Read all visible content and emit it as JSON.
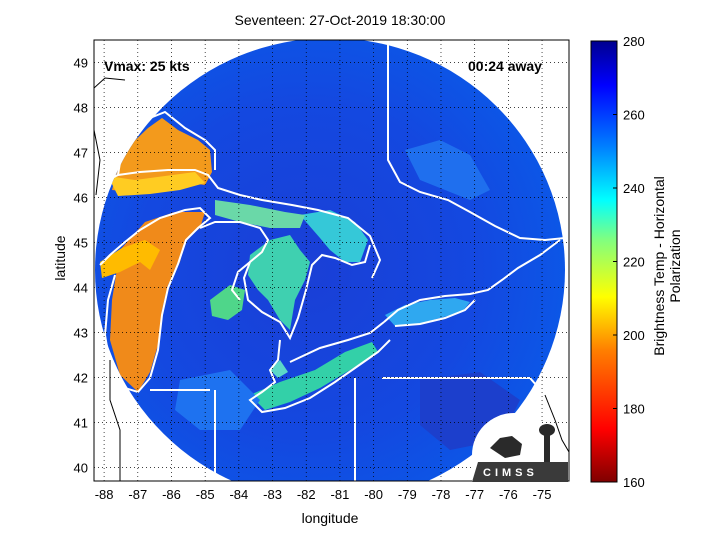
{
  "chart_data": {
    "type": "heatmap",
    "title": "Seventeen: 27-Oct-2019 18:30:00",
    "xlabel": "longitude",
    "ylabel": "latitude",
    "xlim": [
      -88.3,
      -74.2
    ],
    "ylim": [
      39.7,
      49.5
    ],
    "xticks": [
      -88,
      -87,
      -86,
      -85,
      -84,
      -83,
      -82,
      -81,
      -80,
      -79,
      -78,
      -77,
      -76,
      -75
    ],
    "yticks": [
      40,
      41,
      42,
      43,
      44,
      45,
      46,
      47,
      48,
      49
    ],
    "grid": true,
    "annotations": {
      "vmax": "Vmax: 25 kts",
      "time_away": "00:24 away"
    },
    "colorbar": {
      "label": "Brightness Temp - Horizontal Polarization",
      "min": 160,
      "max": 280,
      "ticks": [
        160,
        180,
        200,
        220,
        240,
        260,
        280
      ],
      "colormap": [
        "#7f0000",
        "#ff0000",
        "#ff8000",
        "#ffff00",
        "#80ff80",
        "#00ffff",
        "#0080ff",
        "#0000ff",
        "#00008f"
      ]
    },
    "swath": {
      "center_lon": -81.15,
      "center_lat": 44.2,
      "radius_deg_lon": 6.7,
      "radius_deg_lat": 4.9,
      "background_value": 262
    },
    "warm_regions": [
      {
        "name": "lake-michigan",
        "value": 192
      },
      {
        "name": "lake-superior-east",
        "value": 196
      },
      {
        "name": "lake-huron",
        "value": 232
      },
      {
        "name": "georgian-bay",
        "value": 238
      },
      {
        "name": "lake-erie",
        "value": 236
      },
      {
        "name": "lake-ontario",
        "value": 250
      }
    ]
  },
  "logo": {
    "text": "CIMSS"
  }
}
